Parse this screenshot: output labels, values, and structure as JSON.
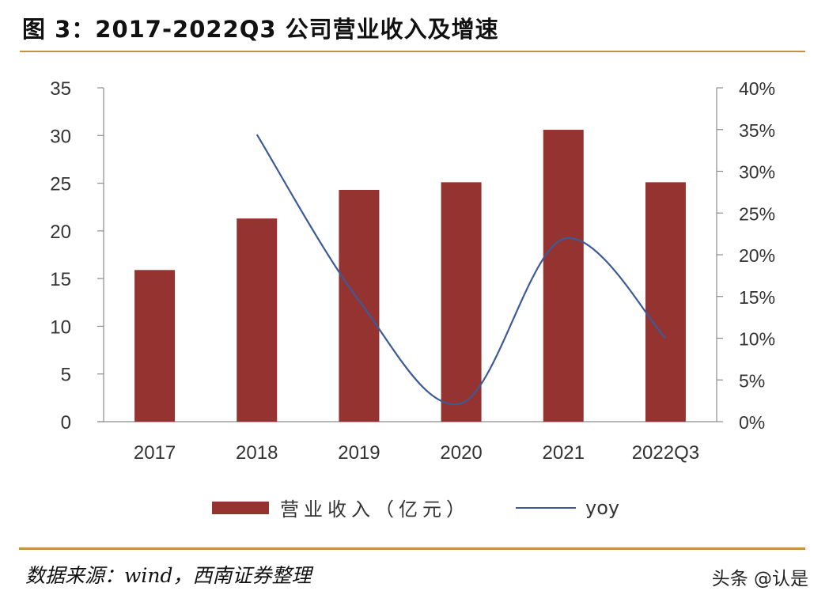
{
  "header": {
    "title": "图 3：2017-2022Q3 公司营业收入及增速"
  },
  "colors": {
    "bar": "#943330",
    "line": "#3d5a98",
    "rule": "#c8913f",
    "axis": "#8c8c8c"
  },
  "chart_data": {
    "type": "bar+line",
    "title": "2017-2022Q3 公司营业收入及增速",
    "categories": [
      "2017",
      "2018",
      "2019",
      "2020",
      "2021",
      "2022Q3"
    ],
    "series": [
      {
        "name": "营业收入（亿元）",
        "type": "bar",
        "axis": "left",
        "values": [
          15.9,
          21.3,
          24.3,
          25.1,
          30.6,
          25.1
        ]
      },
      {
        "name": "yoy",
        "type": "line",
        "axis": "right",
        "unit": "%",
        "values": [
          null,
          34.4,
          14.5,
          2.2,
          21.9,
          10.0
        ]
      }
    ],
    "y_left": {
      "min": 0,
      "max": 35,
      "step": 5,
      "ticks": [
        "0",
        "5",
        "10",
        "15",
        "20",
        "25",
        "30",
        "35"
      ]
    },
    "y_right": {
      "min": 0,
      "max": 40,
      "step": 5,
      "ticks": [
        "0%",
        "5%",
        "10%",
        "15%",
        "20%",
        "25%",
        "30%",
        "35%",
        "40%"
      ]
    },
    "xlabel": "",
    "ylabel": "",
    "grid": false,
    "legend_position": "bottom"
  },
  "legend": {
    "bar_label": "营业收入（亿元）",
    "line_label": "yoy"
  },
  "footer": {
    "source": "数据来源：wind，西南证券整理",
    "watermark": "头条 @认是"
  }
}
